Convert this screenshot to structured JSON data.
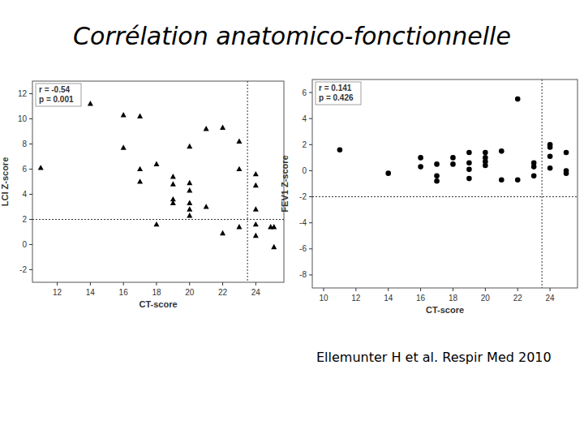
{
  "slide": {
    "title": "Corrélation anatomico-fonctionnelle",
    "citation": "Ellemunter H et al. Respir Med 2010"
  },
  "chart_data": [
    {
      "type": "scatter",
      "x_label": "CT-score",
      "y_label": "LCI Z-score",
      "marker": "triangle",
      "color": "#000000",
      "grid": false,
      "annotations": [
        "r = -0.54",
        "p = 0.001"
      ],
      "reference_lines": {
        "x": 23.5,
        "y": 2
      },
      "xlim": [
        10.5,
        25.7
      ],
      "ylim": [
        -3,
        13
      ],
      "xticks": [
        12,
        14,
        16,
        18,
        20,
        22,
        24
      ],
      "yticks": [
        -2,
        0,
        2,
        4,
        6,
        8,
        10,
        12
      ],
      "x": [
        11,
        14,
        16,
        16,
        17,
        17,
        17,
        18,
        18,
        19,
        19,
        19,
        19,
        20,
        20,
        20,
        20,
        20,
        20,
        21,
        21,
        22,
        22,
        23,
        23,
        23,
        24,
        24,
        24,
        24,
        24,
        24.9,
        25.1,
        25.1
      ],
      "values": [
        6.1,
        11.2,
        10.3,
        7.7,
        10.2,
        6.0,
        5.0,
        6.4,
        1.6,
        5.4,
        4.8,
        3.6,
        3.3,
        7.8,
        4.9,
        4.3,
        3.3,
        2.8,
        2.3,
        9.2,
        3.0,
        9.3,
        0.9,
        8.2,
        6.0,
        1.4,
        5.6,
        4.7,
        2.8,
        1.6,
        0.7,
        1.4,
        1.4,
        -0.2
      ]
    },
    {
      "type": "scatter",
      "x_label": "CT-score",
      "y_label": "FEV1 Z-score",
      "marker": "circle",
      "color": "#000000",
      "grid": false,
      "annotations": [
        "r = 0.141",
        "p = 0.426"
      ],
      "reference_lines": {
        "x": 23.5,
        "y": -2
      },
      "xlim": [
        9.3,
        25.7
      ],
      "ylim": [
        -9,
        7
      ],
      "xticks": [
        10,
        12,
        14,
        16,
        18,
        20,
        22,
        24
      ],
      "yticks": [
        -8,
        -6,
        -4,
        -2,
        0,
        2,
        4,
        6
      ],
      "x": [
        11,
        14,
        16,
        16,
        17,
        17,
        17,
        18,
        18,
        19,
        19,
        19,
        19,
        20,
        20,
        20,
        20,
        21,
        21,
        22,
        22,
        23,
        23,
        23,
        24,
        24,
        24,
        24,
        25,
        25,
        25
      ],
      "values": [
        1.6,
        -0.2,
        1.0,
        0.3,
        0.5,
        -0.4,
        -0.8,
        1.0,
        0.5,
        1.4,
        0.6,
        0.1,
        -0.6,
        1.4,
        1.0,
        0.7,
        0.4,
        1.5,
        -0.7,
        5.5,
        -0.7,
        0.6,
        0.3,
        -0.4,
        2.0,
        1.8,
        1.1,
        0.2,
        1.4,
        0.0,
        -0.2
      ]
    }
  ]
}
